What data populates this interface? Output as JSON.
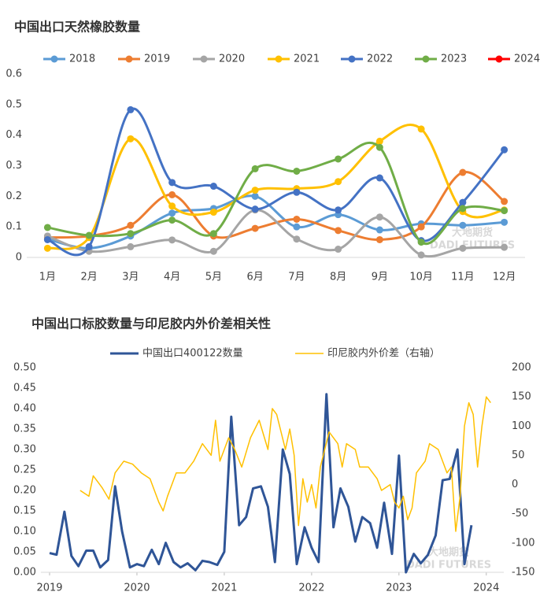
{
  "chart_data": [
    {
      "type": "line",
      "smooth": true,
      "markers": true,
      "title": "中国出口天然橡胶数量",
      "categories": [
        "1月",
        "2月",
        "3月",
        "4月",
        "5月",
        "6月",
        "7月",
        "8月",
        "9月",
        "10月",
        "11月",
        "12月"
      ],
      "ylim": [
        0,
        0.6
      ],
      "yticks": [
        0,
        0.1,
        0.2,
        0.3,
        0.4,
        0.5,
        0.6
      ],
      "grid": false,
      "legend": "top",
      "watermark": [
        "大地期货",
        "DADI FUTURES"
      ],
      "series": [
        {
          "name": "2018",
          "color": "#5b9bd5",
          "values": [
            0.06,
            0.03,
            0.07,
            0.145,
            0.16,
            0.2,
            0.1,
            0.14,
            0.09,
            0.11,
            0.105,
            0.115
          ]
        },
        {
          "name": "2019",
          "color": "#ed7d31",
          "values": [
            0.065,
            0.07,
            0.105,
            0.205,
            0.07,
            0.095,
            0.125,
            0.088,
            0.058,
            0.1,
            0.278,
            0.183
          ]
        },
        {
          "name": "2020",
          "color": "#a5a5a5",
          "values": [
            0.07,
            0.02,
            0.035,
            0.057,
            0.02,
            0.155,
            0.06,
            0.027,
            0.132,
            0.008,
            0.03,
            0.033
          ]
        },
        {
          "name": "2021",
          "color": "#ffc000",
          "values": [
            0.03,
            0.065,
            0.388,
            0.168,
            0.148,
            0.22,
            0.225,
            0.248,
            0.38,
            0.42,
            0.15,
            0.155
          ]
        },
        {
          "name": "2022",
          "color": "#4472c4",
          "values": [
            0.058,
            0.035,
            0.483,
            0.245,
            0.233,
            0.158,
            0.213,
            0.155,
            0.26,
            0.055,
            0.18,
            0.352
          ]
        },
        {
          "name": "2023",
          "color": "#70ad47",
          "values": [
            0.098,
            0.072,
            0.078,
            0.122,
            0.078,
            0.29,
            0.282,
            0.322,
            0.36,
            0.05,
            0.16,
            0.153
          ]
        },
        {
          "name": "2024",
          "color": "#ff0000",
          "values": [
            null,
            null,
            null,
            null,
            null,
            null,
            null,
            null,
            null,
            null,
            null,
            null
          ]
        }
      ]
    },
    {
      "type": "line",
      "smooth": false,
      "markers": false,
      "title": "中国出口标胶数量与印尼胶内外价差相关性",
      "xlim": [
        2018.9,
        2024.2
      ],
      "xticks": [
        2019,
        2020,
        2021,
        2022,
        2023,
        2024
      ],
      "ylim": [
        0,
        0.5
      ],
      "yticks": [
        {
          "value": 0,
          "label": "0.00"
        },
        {
          "value": 0.05,
          "label": "0.05"
        },
        {
          "value": 0.1,
          "label": "0.10"
        },
        {
          "value": 0.15,
          "label": "0.15"
        },
        {
          "value": 0.2,
          "label": "0.20"
        },
        {
          "value": 0.25,
          "label": "0.25"
        },
        {
          "value": 0.3,
          "label": "0.30"
        },
        {
          "value": 0.35,
          "label": "0.35"
        },
        {
          "value": 0.4,
          "label": "0.40"
        },
        {
          "value": 0.45,
          "label": "0.45"
        },
        {
          "value": 0.5,
          "label": "0.50"
        }
      ],
      "y2lim": [
        -150,
        200
      ],
      "y2ticks": [
        -150,
        -100,
        -50,
        0,
        50,
        100,
        150,
        200
      ],
      "grid": false,
      "legend": "top",
      "watermark": [
        "大地期货",
        "DADI FUTURES"
      ],
      "series": [
        {
          "name": "中国出口400122数量",
          "color": "#2f5597",
          "width": 3,
          "x": [
            2019.0,
            2019.08,
            2019.17,
            2019.25,
            2019.33,
            2019.42,
            2019.5,
            2019.58,
            2019.67,
            2019.75,
            2019.83,
            2019.92,
            2020.0,
            2020.08,
            2020.17,
            2020.25,
            2020.33,
            2020.42,
            2020.5,
            2020.58,
            2020.67,
            2020.75,
            2020.83,
            2020.92,
            2021.0,
            2021.08,
            2021.17,
            2021.25,
            2021.33,
            2021.42,
            2021.5,
            2021.58,
            2021.67,
            2021.75,
            2021.83,
            2021.92,
            2022.0,
            2022.08,
            2022.17,
            2022.25,
            2022.33,
            2022.42,
            2022.5,
            2022.58,
            2022.67,
            2022.75,
            2022.83,
            2022.92,
            2023.0,
            2023.08,
            2023.17,
            2023.25,
            2023.33,
            2023.42,
            2023.5,
            2023.58,
            2023.67,
            2023.75,
            2023.83
          ],
          "values": [
            0.047,
            0.043,
            0.148,
            0.04,
            0.015,
            0.053,
            0.053,
            0.012,
            0.03,
            0.21,
            0.1,
            0.012,
            0.02,
            0.015,
            0.055,
            0.02,
            0.072,
            0.025,
            0.012,
            0.022,
            0.005,
            0.028,
            0.025,
            0.018,
            0.05,
            0.38,
            0.115,
            0.135,
            0.205,
            0.21,
            0.16,
            0.025,
            0.3,
            0.24,
            0.02,
            0.11,
            0.06,
            0.025,
            0.435,
            0.11,
            0.205,
            0.16,
            0.075,
            0.135,
            0.12,
            0.06,
            0.17,
            0.045,
            0.285,
            0.0,
            0.045,
            0.022,
            0.042,
            0.09,
            0.225,
            0.228,
            0.3,
            0.02,
            0.115
          ]
        },
        {
          "name": "印尼胶内外价差（右轴）",
          "color": "#ffc000",
          "width": 1.5,
          "axis": "y2",
          "x": [
            2019.35,
            2019.45,
            2019.5,
            2019.6,
            2019.68,
            2019.75,
            2019.85,
            2019.95,
            2020.05,
            2020.15,
            2020.25,
            2020.3,
            2020.35,
            2020.45,
            2020.55,
            2020.65,
            2020.75,
            2020.85,
            2020.9,
            2020.95,
            2021.05,
            2021.12,
            2021.2,
            2021.3,
            2021.4,
            2021.5,
            2021.55,
            2021.6,
            2021.7,
            2021.75,
            2021.8,
            2021.85,
            2021.9,
            2021.95,
            2022.0,
            2022.05,
            2022.1,
            2022.2,
            2022.3,
            2022.35,
            2022.4,
            2022.5,
            2022.55,
            2022.65,
            2022.75,
            2022.8,
            2022.9,
            2022.95,
            2023.0,
            2023.05,
            2023.1,
            2023.15,
            2023.2,
            2023.3,
            2023.35,
            2023.45,
            2023.5,
            2023.55,
            2023.6,
            2023.65,
            2023.7,
            2023.75,
            2023.8,
            2023.85,
            2023.9,
            2023.95,
            2024.0,
            2024.05
          ],
          "values": [
            -10,
            -20,
            15,
            -5,
            -25,
            20,
            40,
            35,
            20,
            10,
            -30,
            -45,
            -20,
            20,
            20,
            40,
            70,
            50,
            110,
            40,
            80,
            60,
            30,
            80,
            110,
            60,
            130,
            120,
            60,
            95,
            50,
            -70,
            10,
            -30,
            0,
            -40,
            30,
            90,
            70,
            30,
            70,
            60,
            30,
            30,
            10,
            -10,
            0,
            -30,
            -40,
            -20,
            -60,
            -40,
            20,
            40,
            70,
            60,
            40,
            20,
            30,
            -80,
            -20,
            100,
            140,
            120,
            30,
            100,
            150,
            140
          ]
        }
      ]
    }
  ]
}
